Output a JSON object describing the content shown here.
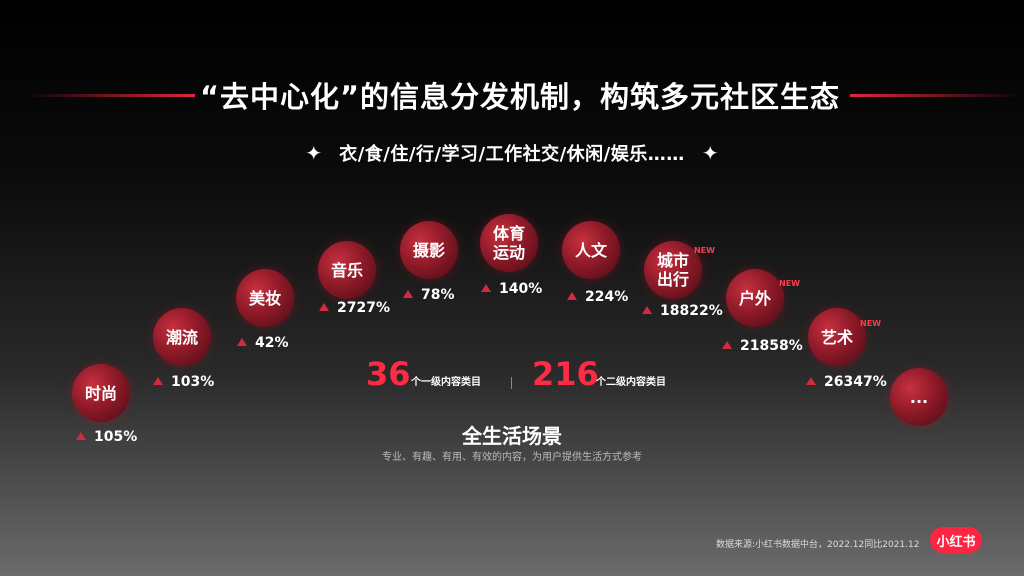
{
  "header": {
    "title": "“去中心化”的信息分发机制，构筑多元社区生态",
    "subtitle": "衣/食/住/行/学习/工作社交/休闲/娱乐……",
    "sparkle_glyph": "✦"
  },
  "categories": [
    {
      "label": "时尚",
      "growth": "105%"
    },
    {
      "label": "潮流",
      "growth": "103%"
    },
    {
      "label": "美妆",
      "growth": "42%"
    },
    {
      "label": "音乐",
      "growth": "2727%"
    },
    {
      "label": "摄影",
      "growth": "78%"
    },
    {
      "label": "体育\n运动",
      "growth": "140%"
    },
    {
      "label": "人文",
      "growth": "224%"
    },
    {
      "label": "城市\n出行",
      "growth": "18822%",
      "badge": "NEW"
    },
    {
      "label": "户外",
      "growth": "21858%",
      "badge": "NEW"
    },
    {
      "label": "艺术",
      "growth": "26347%",
      "badge": "NEW"
    },
    {
      "label": "..."
    }
  ],
  "center_stats": {
    "primary": {
      "number": "36",
      "label": "个一级内容类目"
    },
    "secondary": {
      "number": "216",
      "label": "个二级内容类目"
    }
  },
  "scene": {
    "title": "全生活场景",
    "description": "专业、有趣、有用、有效的内容，为用户提供生活方式参考"
  },
  "footer": {
    "source": "数据来源:小红书数据中台，2022.12同比2021.12",
    "logo": "小红书"
  },
  "colors": {
    "accent": "#ff2b44",
    "bubble": "#8e1a28",
    "arrow": "#d42a3c"
  }
}
